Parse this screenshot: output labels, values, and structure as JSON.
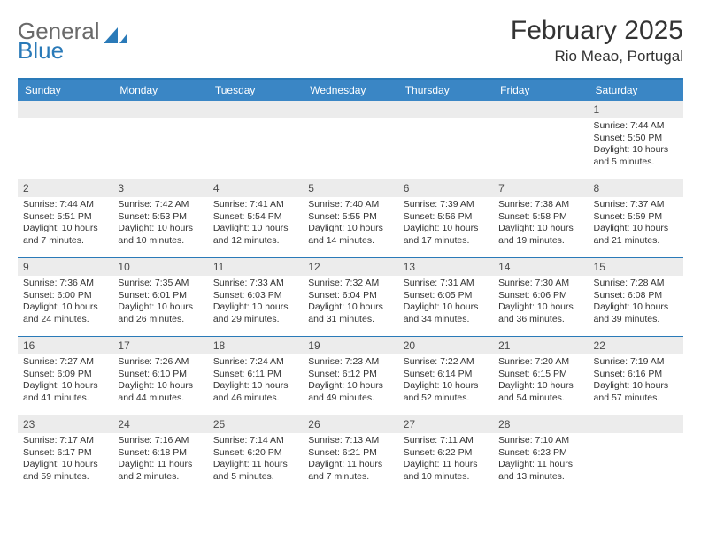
{
  "brand": {
    "line1": "General",
    "line2": "Blue"
  },
  "title": "February 2025",
  "location": "Rio Meao, Portugal",
  "colors": {
    "header_bar": "#3a86c5",
    "border": "#2a7ab8",
    "daynum_bg": "#ececec",
    "text": "#333333",
    "logo_gray": "#6a6a6a",
    "logo_blue": "#2a7ab8"
  },
  "weekdays": [
    "Sunday",
    "Monday",
    "Tuesday",
    "Wednesday",
    "Thursday",
    "Friday",
    "Saturday"
  ],
  "weeks": [
    [
      {
        "empty": true
      },
      {
        "empty": true
      },
      {
        "empty": true
      },
      {
        "empty": true
      },
      {
        "empty": true
      },
      {
        "empty": true
      },
      {
        "n": "1",
        "sunrise": "7:44 AM",
        "sunset": "5:50 PM",
        "daylight": "10 hours and 5 minutes."
      }
    ],
    [
      {
        "n": "2",
        "sunrise": "7:44 AM",
        "sunset": "5:51 PM",
        "daylight": "10 hours and 7 minutes."
      },
      {
        "n": "3",
        "sunrise": "7:42 AM",
        "sunset": "5:53 PM",
        "daylight": "10 hours and 10 minutes."
      },
      {
        "n": "4",
        "sunrise": "7:41 AM",
        "sunset": "5:54 PM",
        "daylight": "10 hours and 12 minutes."
      },
      {
        "n": "5",
        "sunrise": "7:40 AM",
        "sunset": "5:55 PM",
        "daylight": "10 hours and 14 minutes."
      },
      {
        "n": "6",
        "sunrise": "7:39 AM",
        "sunset": "5:56 PM",
        "daylight": "10 hours and 17 minutes."
      },
      {
        "n": "7",
        "sunrise": "7:38 AM",
        "sunset": "5:58 PM",
        "daylight": "10 hours and 19 minutes."
      },
      {
        "n": "8",
        "sunrise": "7:37 AM",
        "sunset": "5:59 PM",
        "daylight": "10 hours and 21 minutes."
      }
    ],
    [
      {
        "n": "9",
        "sunrise": "7:36 AM",
        "sunset": "6:00 PM",
        "daylight": "10 hours and 24 minutes."
      },
      {
        "n": "10",
        "sunrise": "7:35 AM",
        "sunset": "6:01 PM",
        "daylight": "10 hours and 26 minutes."
      },
      {
        "n": "11",
        "sunrise": "7:33 AM",
        "sunset": "6:03 PM",
        "daylight": "10 hours and 29 minutes."
      },
      {
        "n": "12",
        "sunrise": "7:32 AM",
        "sunset": "6:04 PM",
        "daylight": "10 hours and 31 minutes."
      },
      {
        "n": "13",
        "sunrise": "7:31 AM",
        "sunset": "6:05 PM",
        "daylight": "10 hours and 34 minutes."
      },
      {
        "n": "14",
        "sunrise": "7:30 AM",
        "sunset": "6:06 PM",
        "daylight": "10 hours and 36 minutes."
      },
      {
        "n": "15",
        "sunrise": "7:28 AM",
        "sunset": "6:08 PM",
        "daylight": "10 hours and 39 minutes."
      }
    ],
    [
      {
        "n": "16",
        "sunrise": "7:27 AM",
        "sunset": "6:09 PM",
        "daylight": "10 hours and 41 minutes."
      },
      {
        "n": "17",
        "sunrise": "7:26 AM",
        "sunset": "6:10 PM",
        "daylight": "10 hours and 44 minutes."
      },
      {
        "n": "18",
        "sunrise": "7:24 AM",
        "sunset": "6:11 PM",
        "daylight": "10 hours and 46 minutes."
      },
      {
        "n": "19",
        "sunrise": "7:23 AM",
        "sunset": "6:12 PM",
        "daylight": "10 hours and 49 minutes."
      },
      {
        "n": "20",
        "sunrise": "7:22 AM",
        "sunset": "6:14 PM",
        "daylight": "10 hours and 52 minutes."
      },
      {
        "n": "21",
        "sunrise": "7:20 AM",
        "sunset": "6:15 PM",
        "daylight": "10 hours and 54 minutes."
      },
      {
        "n": "22",
        "sunrise": "7:19 AM",
        "sunset": "6:16 PM",
        "daylight": "10 hours and 57 minutes."
      }
    ],
    [
      {
        "n": "23",
        "sunrise": "7:17 AM",
        "sunset": "6:17 PM",
        "daylight": "10 hours and 59 minutes."
      },
      {
        "n": "24",
        "sunrise": "7:16 AM",
        "sunset": "6:18 PM",
        "daylight": "11 hours and 2 minutes."
      },
      {
        "n": "25",
        "sunrise": "7:14 AM",
        "sunset": "6:20 PM",
        "daylight": "11 hours and 5 minutes."
      },
      {
        "n": "26",
        "sunrise": "7:13 AM",
        "sunset": "6:21 PM",
        "daylight": "11 hours and 7 minutes."
      },
      {
        "n": "27",
        "sunrise": "7:11 AM",
        "sunset": "6:22 PM",
        "daylight": "11 hours and 10 minutes."
      },
      {
        "n": "28",
        "sunrise": "7:10 AM",
        "sunset": "6:23 PM",
        "daylight": "11 hours and 13 minutes."
      },
      {
        "empty": true
      }
    ]
  ]
}
